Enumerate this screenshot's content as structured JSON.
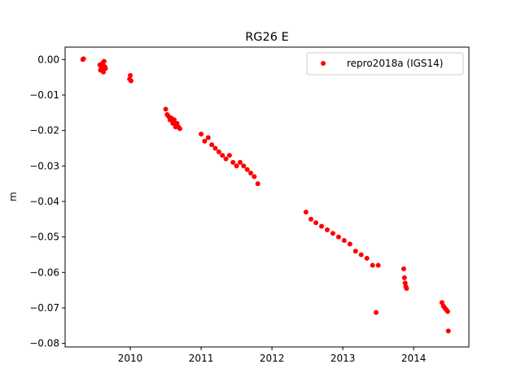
{
  "chart_data": {
    "type": "scatter",
    "title": "RG26 E",
    "xlabel": "",
    "ylabel": "m",
    "xlim": [
      2009.08,
      2014.78
    ],
    "ylim": [
      -0.081,
      0.0035
    ],
    "xticks": [
      2010,
      2011,
      2012,
      2013,
      2014
    ],
    "xtick_labels": [
      "2010",
      "2011",
      "2012",
      "2013",
      "2014"
    ],
    "yticks": [
      0.0,
      -0.01,
      -0.02,
      -0.03,
      -0.04,
      -0.05,
      -0.06,
      -0.07,
      -0.08
    ],
    "ytick_labels": [
      "0.00",
      "−0.01",
      "−0.02",
      "−0.03",
      "−0.04",
      "−0.05",
      "−0.06",
      "−0.07",
      "−0.08"
    ],
    "grid": false,
    "legend_position": "top-right",
    "series": [
      {
        "name": "repro2018a (IGS14)",
        "color": "#ff0000",
        "marker": "circle",
        "points": [
          [
            2009.33,
            0.0
          ],
          [
            2009.34,
            0.0002
          ],
          [
            2009.57,
            -0.0015
          ],
          [
            2009.58,
            -0.003
          ],
          [
            2009.59,
            -0.0025
          ],
          [
            2009.6,
            -0.002
          ],
          [
            2009.61,
            -0.001
          ],
          [
            2009.62,
            -0.0035
          ],
          [
            2009.63,
            -0.0005
          ],
          [
            2009.64,
            -0.002
          ],
          [
            2009.65,
            -0.0025
          ],
          [
            2009.99,
            -0.0055
          ],
          [
            2010.0,
            -0.0045
          ],
          [
            2010.01,
            -0.006
          ],
          [
            2010.5,
            -0.014
          ],
          [
            2010.52,
            -0.0155
          ],
          [
            2010.54,
            -0.016
          ],
          [
            2010.56,
            -0.017
          ],
          [
            2010.58,
            -0.0165
          ],
          [
            2010.6,
            -0.018
          ],
          [
            2010.62,
            -0.017
          ],
          [
            2010.64,
            -0.019
          ],
          [
            2010.66,
            -0.018
          ],
          [
            2010.68,
            -0.019
          ],
          [
            2010.7,
            -0.0195
          ],
          [
            2011.0,
            -0.021
          ],
          [
            2011.05,
            -0.023
          ],
          [
            2011.1,
            -0.022
          ],
          [
            2011.15,
            -0.024
          ],
          [
            2011.2,
            -0.025
          ],
          [
            2011.25,
            -0.026
          ],
          [
            2011.3,
            -0.027
          ],
          [
            2011.35,
            -0.028
          ],
          [
            2011.4,
            -0.027
          ],
          [
            2011.45,
            -0.029
          ],
          [
            2011.5,
            -0.03
          ],
          [
            2011.55,
            -0.029
          ],
          [
            2011.6,
            -0.03
          ],
          [
            2011.65,
            -0.031
          ],
          [
            2011.7,
            -0.032
          ],
          [
            2011.75,
            -0.033
          ],
          [
            2011.8,
            -0.035
          ],
          [
            2012.48,
            -0.043
          ],
          [
            2012.55,
            -0.045
          ],
          [
            2012.62,
            -0.046
          ],
          [
            2012.7,
            -0.047
          ],
          [
            2012.78,
            -0.048
          ],
          [
            2012.86,
            -0.049
          ],
          [
            2012.94,
            -0.05
          ],
          [
            2013.02,
            -0.051
          ],
          [
            2013.1,
            -0.052
          ],
          [
            2013.18,
            -0.054
          ],
          [
            2013.26,
            -0.055
          ],
          [
            2013.34,
            -0.056
          ],
          [
            2013.42,
            -0.058
          ],
          [
            2013.5,
            -0.058
          ],
          [
            2013.47,
            -0.0713
          ],
          [
            2013.86,
            -0.059
          ],
          [
            2013.87,
            -0.0615
          ],
          [
            2013.88,
            -0.063
          ],
          [
            2013.89,
            -0.064
          ],
          [
            2013.9,
            -0.0645
          ],
          [
            2014.4,
            -0.0685
          ],
          [
            2014.42,
            -0.0695
          ],
          [
            2014.44,
            -0.07
          ],
          [
            2014.46,
            -0.0705
          ],
          [
            2014.48,
            -0.071
          ],
          [
            2014.49,
            -0.0765
          ]
        ]
      }
    ]
  }
}
